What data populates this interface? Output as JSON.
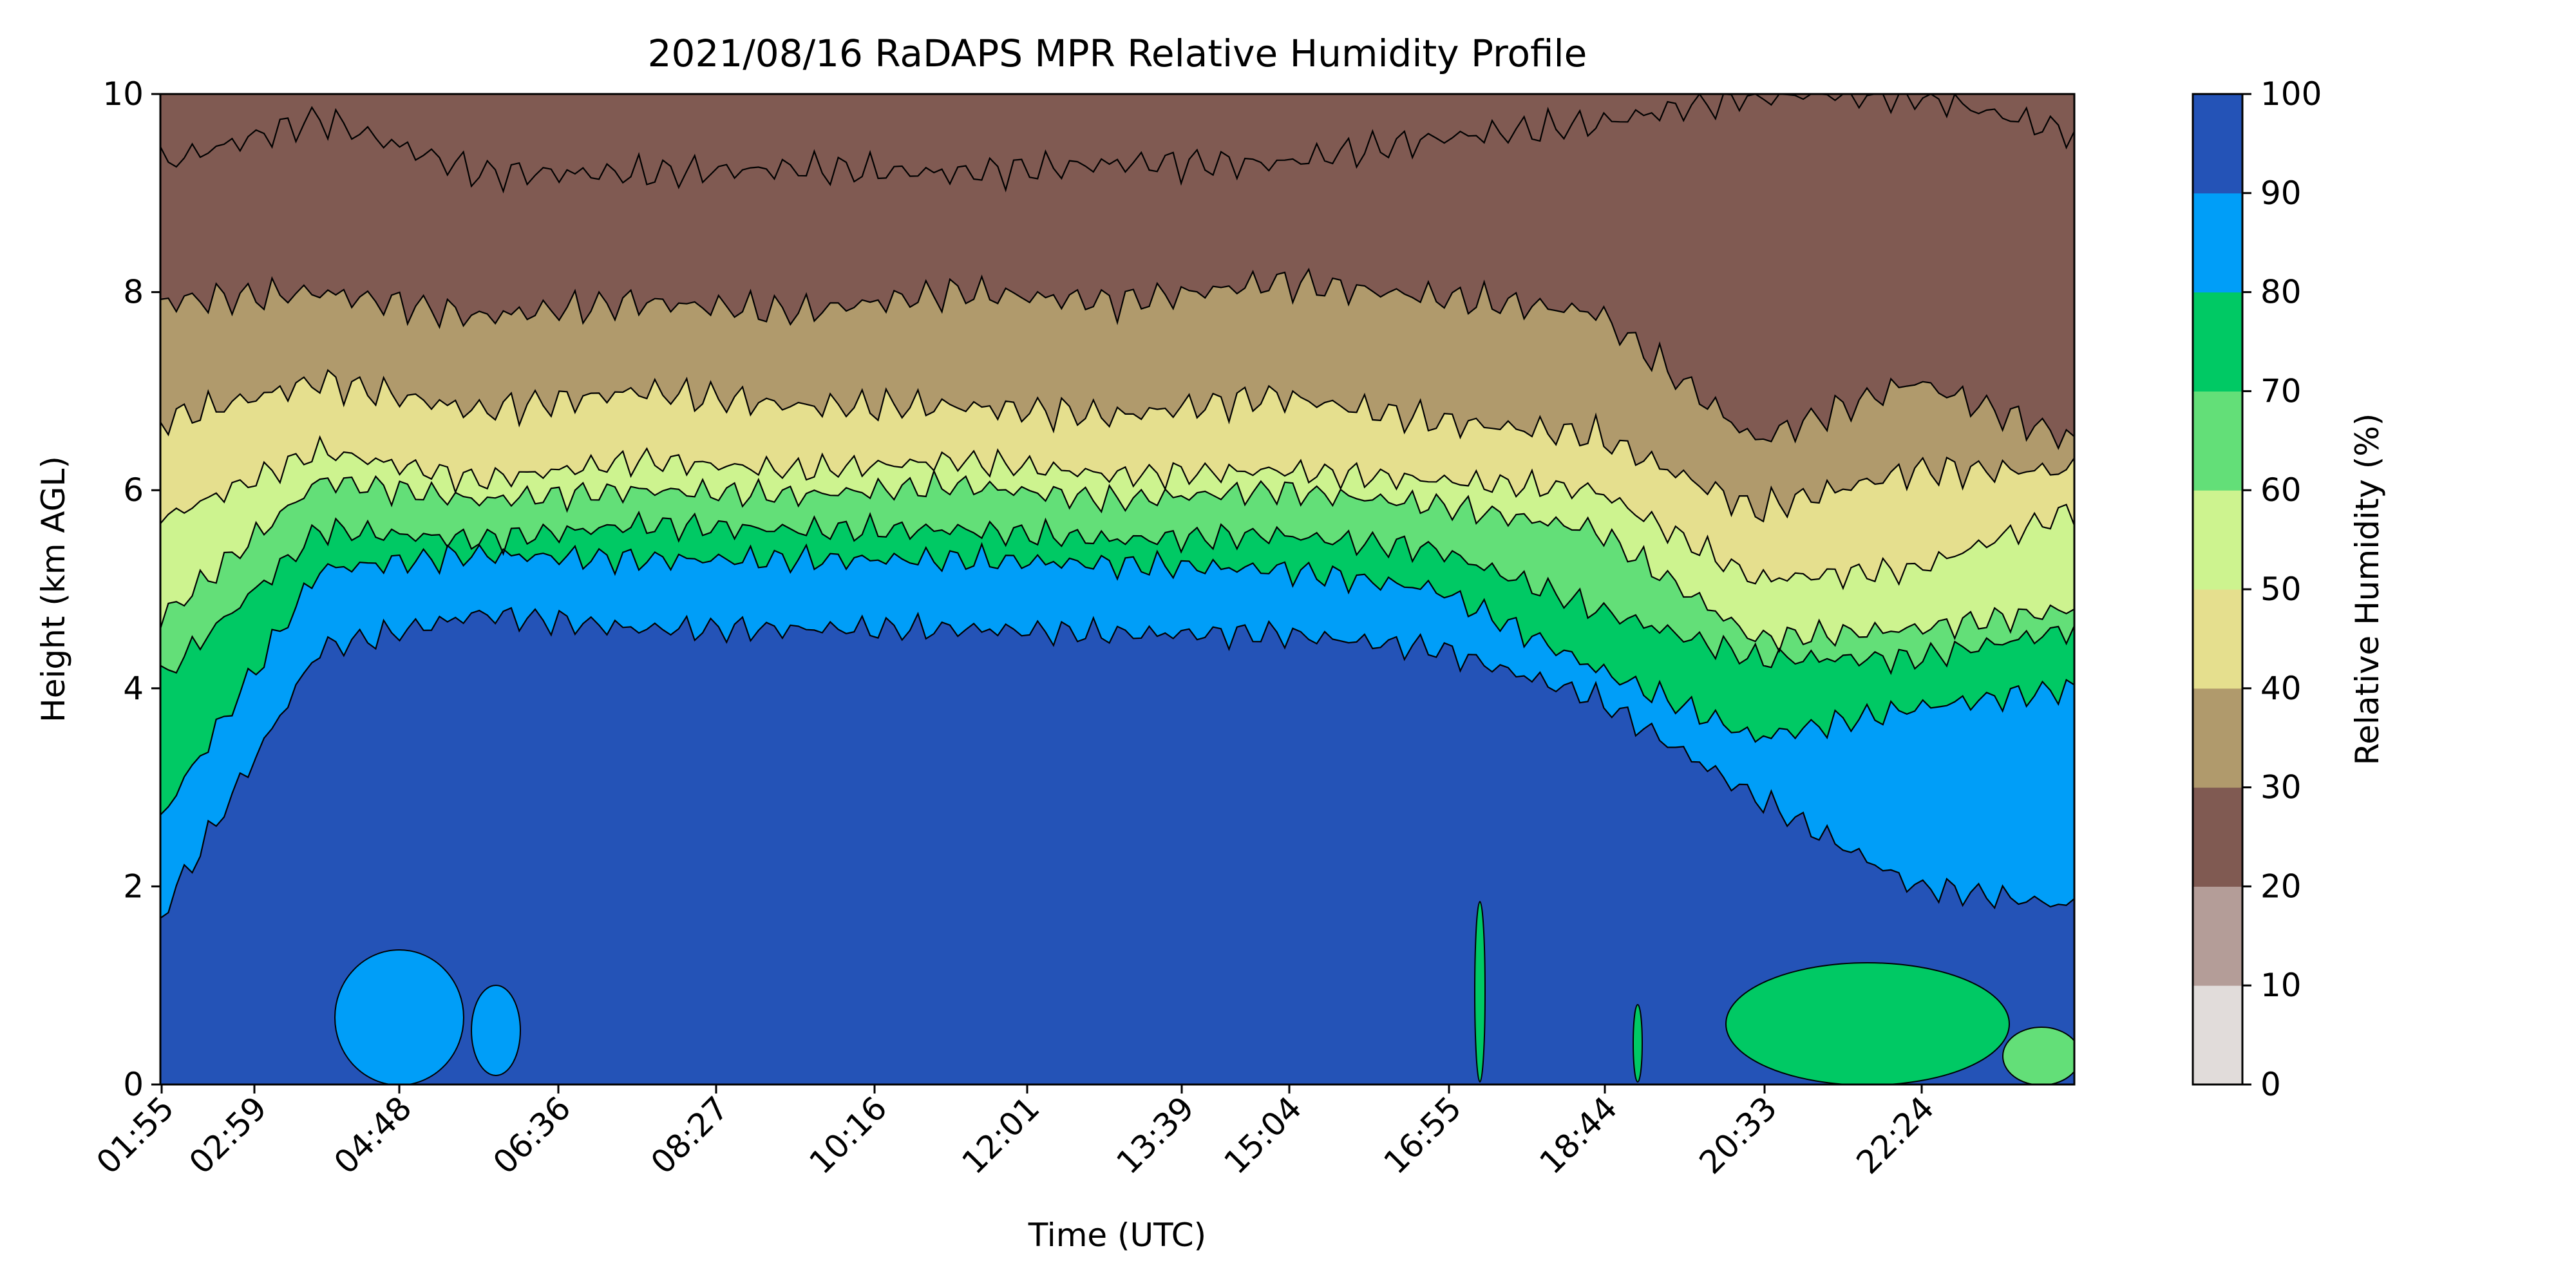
{
  "chart_data": {
    "type": "contourf",
    "title": "2021/08/16 RaDAPS MPR Relative Humidity Profile",
    "xlabel": "Time (UTC)",
    "ylabel": "Height (km AGL)",
    "x_tick_labels": [
      "01:55",
      "02:59",
      "04:48",
      "06:36",
      "08:27",
      "10:16",
      "12:01",
      "13:39",
      "15:04",
      "16:55",
      "18:44",
      "20:33",
      "22:24"
    ],
    "y_ticks": [
      0,
      2,
      4,
      6,
      8,
      10
    ],
    "ylim": [
      0,
      10
    ],
    "colorbar": {
      "label": "Relative Humidity (%)",
      "ticks": [
        0,
        10,
        20,
        30,
        40,
        50,
        60,
        70,
        80,
        90,
        100
      ],
      "levels": [
        {
          "min": 0,
          "max": 10,
          "color": "#e1dcda"
        },
        {
          "min": 10,
          "max": 20,
          "color": "#b49d98"
        },
        {
          "min": 20,
          "max": 30,
          "color": "#805a52"
        },
        {
          "min": 30,
          "max": 40,
          "color": "#b09a6c"
        },
        {
          "min": 40,
          "max": 50,
          "color": "#e5df8e"
        },
        {
          "min": 50,
          "max": 60,
          "color": "#cdf38f"
        },
        {
          "min": 60,
          "max": 70,
          "color": "#63df78"
        },
        {
          "min": 70,
          "max": 80,
          "color": "#00c964"
        },
        {
          "min": 80,
          "max": 90,
          "color": "#009ef8"
        },
        {
          "min": 90,
          "max": 100,
          "color": "#2453b7"
        }
      ]
    },
    "contour_boundaries_km": {
      "rh20": [
        9.3,
        9.75,
        9.2,
        9.2,
        9.25,
        9.2,
        9.3,
        9.3,
        9.55,
        9.7,
        10.0,
        10.0,
        9.6
      ],
      "rh30": [
        7.9,
        8.0,
        7.75,
        7.9,
        7.8,
        8.0,
        7.9,
        8.1,
        7.95,
        7.8,
        6.5,
        7.1,
        6.5
      ],
      "rh40": [
        6.7,
        7.1,
        6.8,
        7.0,
        6.85,
        6.85,
        6.75,
        6.95,
        6.7,
        6.55,
        5.8,
        6.2,
        6.2
      ],
      "rh50": [
        5.7,
        6.4,
        6.1,
        6.3,
        6.2,
        6.3,
        6.15,
        6.2,
        6.1,
        6.0,
        5.1,
        5.2,
        5.8
      ],
      "rh60": [
        4.7,
        6.1,
        5.9,
        6.0,
        5.95,
        6.05,
        5.9,
        6.0,
        5.85,
        5.6,
        4.5,
        4.6,
        4.8
      ],
      "rh70": [
        4.1,
        5.6,
        5.5,
        5.65,
        5.6,
        5.6,
        5.5,
        5.55,
        5.4,
        4.8,
        4.3,
        4.3,
        4.6
      ],
      "rh80": [
        2.7,
        5.2,
        5.35,
        5.3,
        5.3,
        5.3,
        5.25,
        5.2,
        5.0,
        4.2,
        3.5,
        3.8,
        4.0
      ],
      "rh90": [
        1.7,
        4.4,
        4.75,
        4.6,
        4.6,
        4.6,
        4.55,
        4.55,
        4.4,
        3.9,
        2.9,
        2.0,
        1.8
      ]
    }
  }
}
